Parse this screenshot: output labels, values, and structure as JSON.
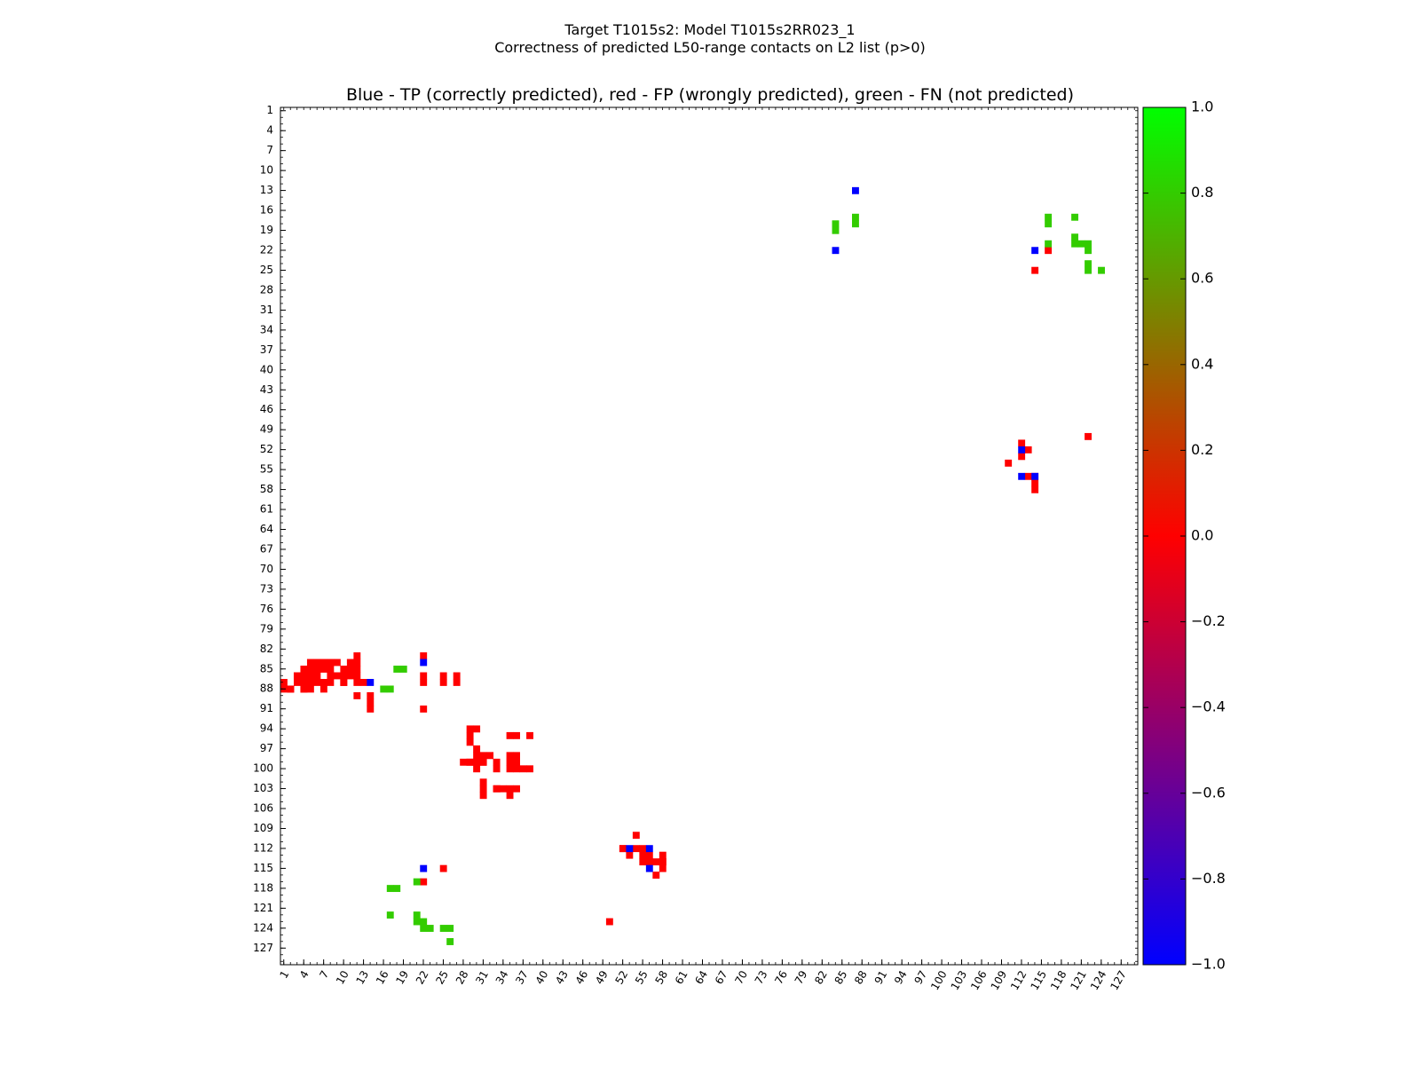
{
  "header": {
    "title_line1": "Target T1015s2: Model T1015s2RR023_1",
    "title_line2": "Correctness of predicted L50-range contacts on L2 list (p>0)"
  },
  "chart_data": {
    "type": "heatmap",
    "subtitle": "Blue - TP (correctly predicted), red - FP (wrongly predicted), green - FN (not predicted)",
    "axis_range": [
      1,
      129
    ],
    "x_ticks": [
      1,
      4,
      7,
      10,
      13,
      16,
      19,
      22,
      25,
      28,
      31,
      34,
      37,
      40,
      43,
      46,
      49,
      52,
      55,
      58,
      61,
      64,
      67,
      70,
      73,
      76,
      79,
      82,
      85,
      88,
      91,
      94,
      97,
      100,
      103,
      106,
      109,
      112,
      115,
      118,
      121,
      124,
      127
    ],
    "y_ticks": [
      1,
      4,
      7,
      10,
      13,
      16,
      19,
      22,
      25,
      28,
      31,
      34,
      37,
      40,
      43,
      46,
      49,
      52,
      55,
      58,
      61,
      64,
      67,
      70,
      73,
      76,
      79,
      82,
      85,
      88,
      91,
      94,
      97,
      100,
      103,
      106,
      109,
      112,
      115,
      118,
      121,
      124,
      127
    ],
    "colorbar": {
      "range": [
        -1.0,
        1.0
      ],
      "ticks": [
        "1.0",
        "0.8",
        "0.6",
        "0.4",
        "0.2",
        "0.0",
        "−0.2",
        "−0.4",
        "−0.6",
        "−0.8",
        "−1.0"
      ],
      "colors": [
        "#0000ff",
        "#ff0000",
        "#00ff00"
      ]
    },
    "categories": {
      "TP": {
        "value": -1.0,
        "color": "#0000ff"
      },
      "FP": {
        "value": 0.0,
        "color": "#ff0000"
      },
      "FN": {
        "value": 0.7,
        "color": "#33cc00"
      }
    },
    "cells": {
      "FP": [
        [
          87,
          1
        ],
        [
          88,
          2
        ],
        [
          86,
          3
        ],
        [
          86,
          4
        ],
        [
          88,
          4
        ],
        [
          87,
          5
        ],
        [
          88,
          5
        ],
        [
          87,
          6
        ],
        [
          87,
          7
        ],
        [
          88,
          7
        ],
        [
          85,
          8
        ],
        [
          86,
          8
        ],
        [
          87,
          8
        ],
        [
          86,
          9
        ],
        [
          85,
          10
        ],
        [
          86,
          10
        ],
        [
          87,
          10
        ],
        [
          84,
          11
        ],
        [
          85,
          11
        ],
        [
          86,
          11
        ],
        [
          83,
          12
        ],
        [
          84,
          12
        ],
        [
          85,
          12
        ],
        [
          86,
          12
        ],
        [
          89,
          12
        ],
        [
          91,
          14
        ],
        [
          83,
          22
        ],
        [
          86,
          22
        ],
        [
          86,
          25
        ],
        [
          86,
          27
        ],
        [
          95,
          29
        ],
        [
          96,
          29
        ],
        [
          99,
          29
        ],
        [
          99,
          31
        ],
        [
          99,
          33
        ],
        [
          100,
          33
        ],
        [
          103,
          33
        ],
        [
          95,
          35
        ],
        [
          98,
          35
        ],
        [
          99,
          35
        ],
        [
          100,
          35
        ],
        [
          103,
          35
        ],
        [
          104,
          35
        ],
        [
          95,
          36
        ],
        [
          98,
          36
        ],
        [
          99,
          36
        ],
        [
          100,
          36
        ],
        [
          103,
          36
        ],
        [
          100,
          37
        ],
        [
          95,
          38
        ],
        [
          100,
          38
        ],
        [
          115,
          25
        ],
        [
          117,
          22
        ],
        [
          123,
          50
        ],
        [
          110,
          54
        ],
        [
          112,
          52
        ],
        [
          112,
          54
        ],
        [
          113,
          53
        ],
        [
          113,
          56
        ],
        [
          114,
          56
        ],
        [
          114,
          57
        ],
        [
          114,
          58
        ],
        [
          88,
          1
        ],
        [
          88,
          2
        ],
        [
          87,
          3
        ],
        [
          86,
          3
        ],
        [
          85,
          4
        ],
        [
          86,
          4
        ],
        [
          87,
          4
        ],
        [
          88,
          4
        ],
        [
          84,
          5
        ],
        [
          85,
          5
        ],
        [
          86,
          5
        ],
        [
          87,
          5
        ],
        [
          84,
          6
        ],
        [
          85,
          6
        ],
        [
          86,
          6
        ],
        [
          84,
          7
        ],
        [
          85,
          7
        ],
        [
          84,
          8
        ],
        [
          84,
          9
        ],
        [
          87,
          10
        ],
        [
          87,
          12
        ],
        [
          87,
          13
        ],
        [
          90,
          14
        ],
        [
          87,
          22
        ],
        [
          91,
          22
        ],
        [
          87,
          25
        ],
        [
          87,
          27
        ],
        [
          94,
          29
        ],
        [
          94,
          30
        ],
        [
          99,
          28
        ],
        [
          99,
          29
        ],
        [
          97,
          30
        ],
        [
          98,
          30
        ],
        [
          99,
          30
        ],
        [
          100,
          30
        ],
        [
          98,
          31
        ],
        [
          99,
          31
        ],
        [
          98,
          32
        ],
        [
          102,
          31
        ],
        [
          103,
          31
        ],
        [
          104,
          31
        ],
        [
          103,
          33
        ],
        [
          103,
          34
        ],
        [
          112,
          52
        ],
        [
          113,
          55
        ],
        [
          112,
          55
        ],
        [
          114,
          55
        ],
        [
          116,
          57
        ],
        [
          113,
          58
        ],
        [
          114,
          58
        ],
        [
          115,
          58
        ],
        [
          89,
          14
        ],
        [
          50,
          122
        ],
        [
          54,
          110
        ],
        [
          51,
          112
        ],
        [
          53,
          112
        ],
        [
          52,
          113
        ],
        [
          56,
          113
        ],
        [
          56,
          114
        ],
        [
          57,
          114
        ],
        [
          58,
          114
        ],
        [
          25,
          114
        ],
        [
          22,
          116
        ]
      ],
      "TP": [
        [
          87,
          14
        ],
        [
          84,
          22
        ],
        [
          115,
          22
        ],
        [
          112,
          53
        ],
        [
          112,
          56
        ],
        [
          115,
          56
        ],
        [
          22,
          84
        ],
        [
          13,
          87
        ],
        [
          22,
          114
        ],
        [
          52,
          112
        ],
        [
          56,
          112
        ],
        [
          56,
          114
        ]
      ],
      "FN": [
        [
          85,
          18
        ],
        [
          85,
          19
        ],
        [
          88,
          16
        ],
        [
          88,
          17
        ],
        [
          118,
          17
        ],
        [
          118,
          18
        ],
        [
          117,
          21
        ],
        [
          122,
          17
        ],
        [
          122,
          21
        ],
        [
          123,
          22
        ],
        [
          124,
          22
        ],
        [
          124,
          23
        ],
        [
          123,
          21
        ],
        [
          124,
          25
        ],
        [
          124,
          26
        ],
        [
          126,
          26
        ],
        [
          18,
          84
        ],
        [
          19,
          84
        ],
        [
          17,
          87
        ],
        [
          18,
          87
        ],
        [
          17,
          116
        ],
        [
          18,
          116
        ],
        [
          21,
          116
        ],
        [
          17,
          120
        ],
        [
          20,
          120
        ],
        [
          21,
          120
        ],
        [
          21,
          121
        ],
        [
          21,
          122
        ],
        [
          22,
          122
        ],
        [
          24,
          122
        ],
        [
          25,
          122
        ],
        [
          25,
          124
        ]
      ]
    }
  }
}
